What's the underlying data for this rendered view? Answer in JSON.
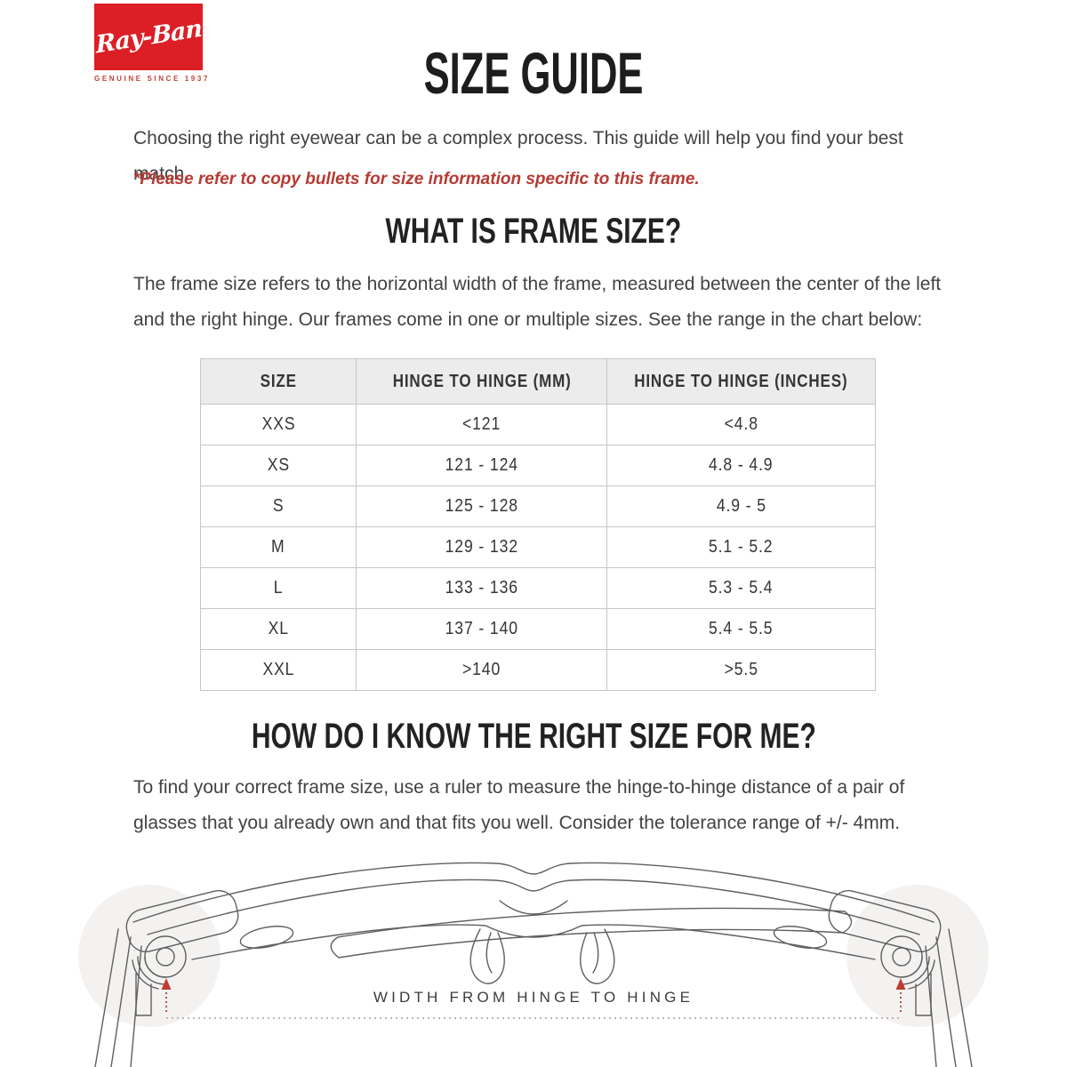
{
  "brand": {
    "logo_text": "Ray-Ban",
    "logo_tagline": "GENUINE SINCE 1937",
    "logo_bg": "#dc1f26"
  },
  "header": {
    "title": "SIZE GUIDE",
    "intro": "Choosing the right eyewear can be a complex process. This guide will help you find your best match.",
    "note": "*Please refer to copy bullets for size information specific to this frame."
  },
  "frame_size_section": {
    "heading": "WHAT IS FRAME SIZE?",
    "body": "The frame size refers to the horizontal width of the frame, measured between the center of the left and the right hinge. Our frames come in one or multiple sizes. See the range in the chart below:"
  },
  "size_table": {
    "columns": [
      "SIZE",
      "HINGE TO HINGE (MM)",
      "HINGE TO HINGE (INCHES)"
    ],
    "rows": [
      [
        "XXS",
        "<121",
        "<4.8"
      ],
      [
        "XS",
        "121 - 124",
        "4.8 - 4.9"
      ],
      [
        "S",
        "125 - 128",
        "4.9 - 5"
      ],
      [
        "M",
        "129 - 132",
        "5.1 - 5.2"
      ],
      [
        "L",
        "133 - 136",
        "5.3 - 5.4"
      ],
      [
        "XL",
        "137 - 140",
        "5.4 - 5.5"
      ],
      [
        "XXL",
        ">140",
        ">5.5"
      ]
    ]
  },
  "right_size_section": {
    "heading": "HOW DO I KNOW THE RIGHT SIZE FOR ME?",
    "body": "To find your correct frame size, use a ruler to measure the hinge-to-hinge distance of a pair of glasses that you already own and that fits you well. Consider the tolerance range of +/- 4mm."
  },
  "diagram": {
    "label": "WIDTH FROM HINGE TO HINGE",
    "arrow_color": "#bf3b33",
    "dotted_line_color": "#b9abab"
  },
  "colors": {
    "accent_red": "#dc1f26",
    "note_red": "#b63a33",
    "text": "#424242",
    "table_header_bg": "#ececec",
    "table_border": "#c6c6c6"
  }
}
